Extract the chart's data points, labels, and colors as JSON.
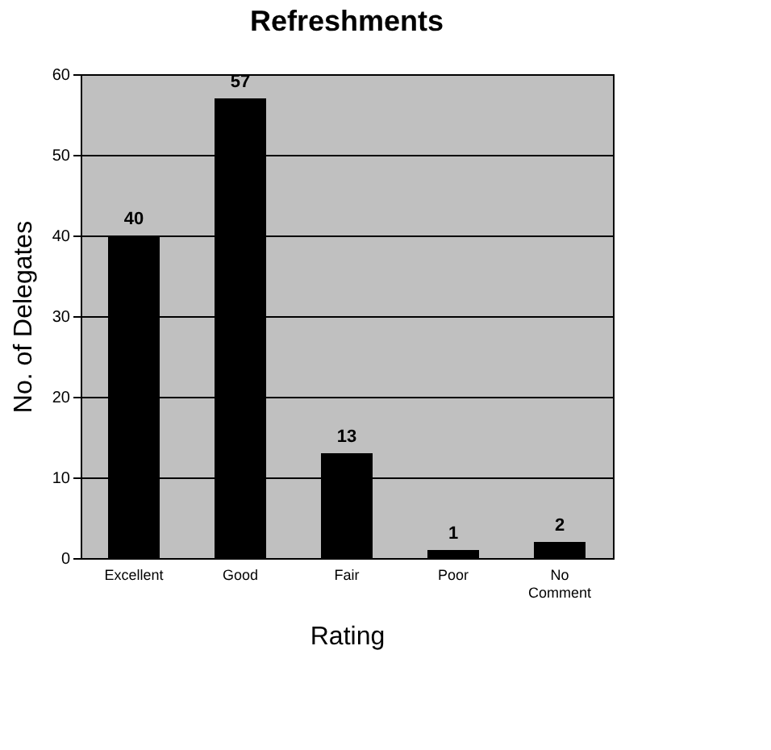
{
  "chart_data": {
    "type": "bar",
    "title": "Refreshments",
    "xlabel": "Rating",
    "ylabel": "No. of Delegates",
    "categories": [
      "Excellent",
      "Good",
      "Fair",
      "Poor",
      "No Comment"
    ],
    "values": [
      40,
      57,
      13,
      1,
      2
    ],
    "color": "#000000",
    "ylim": [
      0,
      60
    ],
    "yticks": [
      0,
      10,
      20,
      30,
      40,
      50,
      60
    ],
    "grid": "y",
    "data_labels": true
  }
}
